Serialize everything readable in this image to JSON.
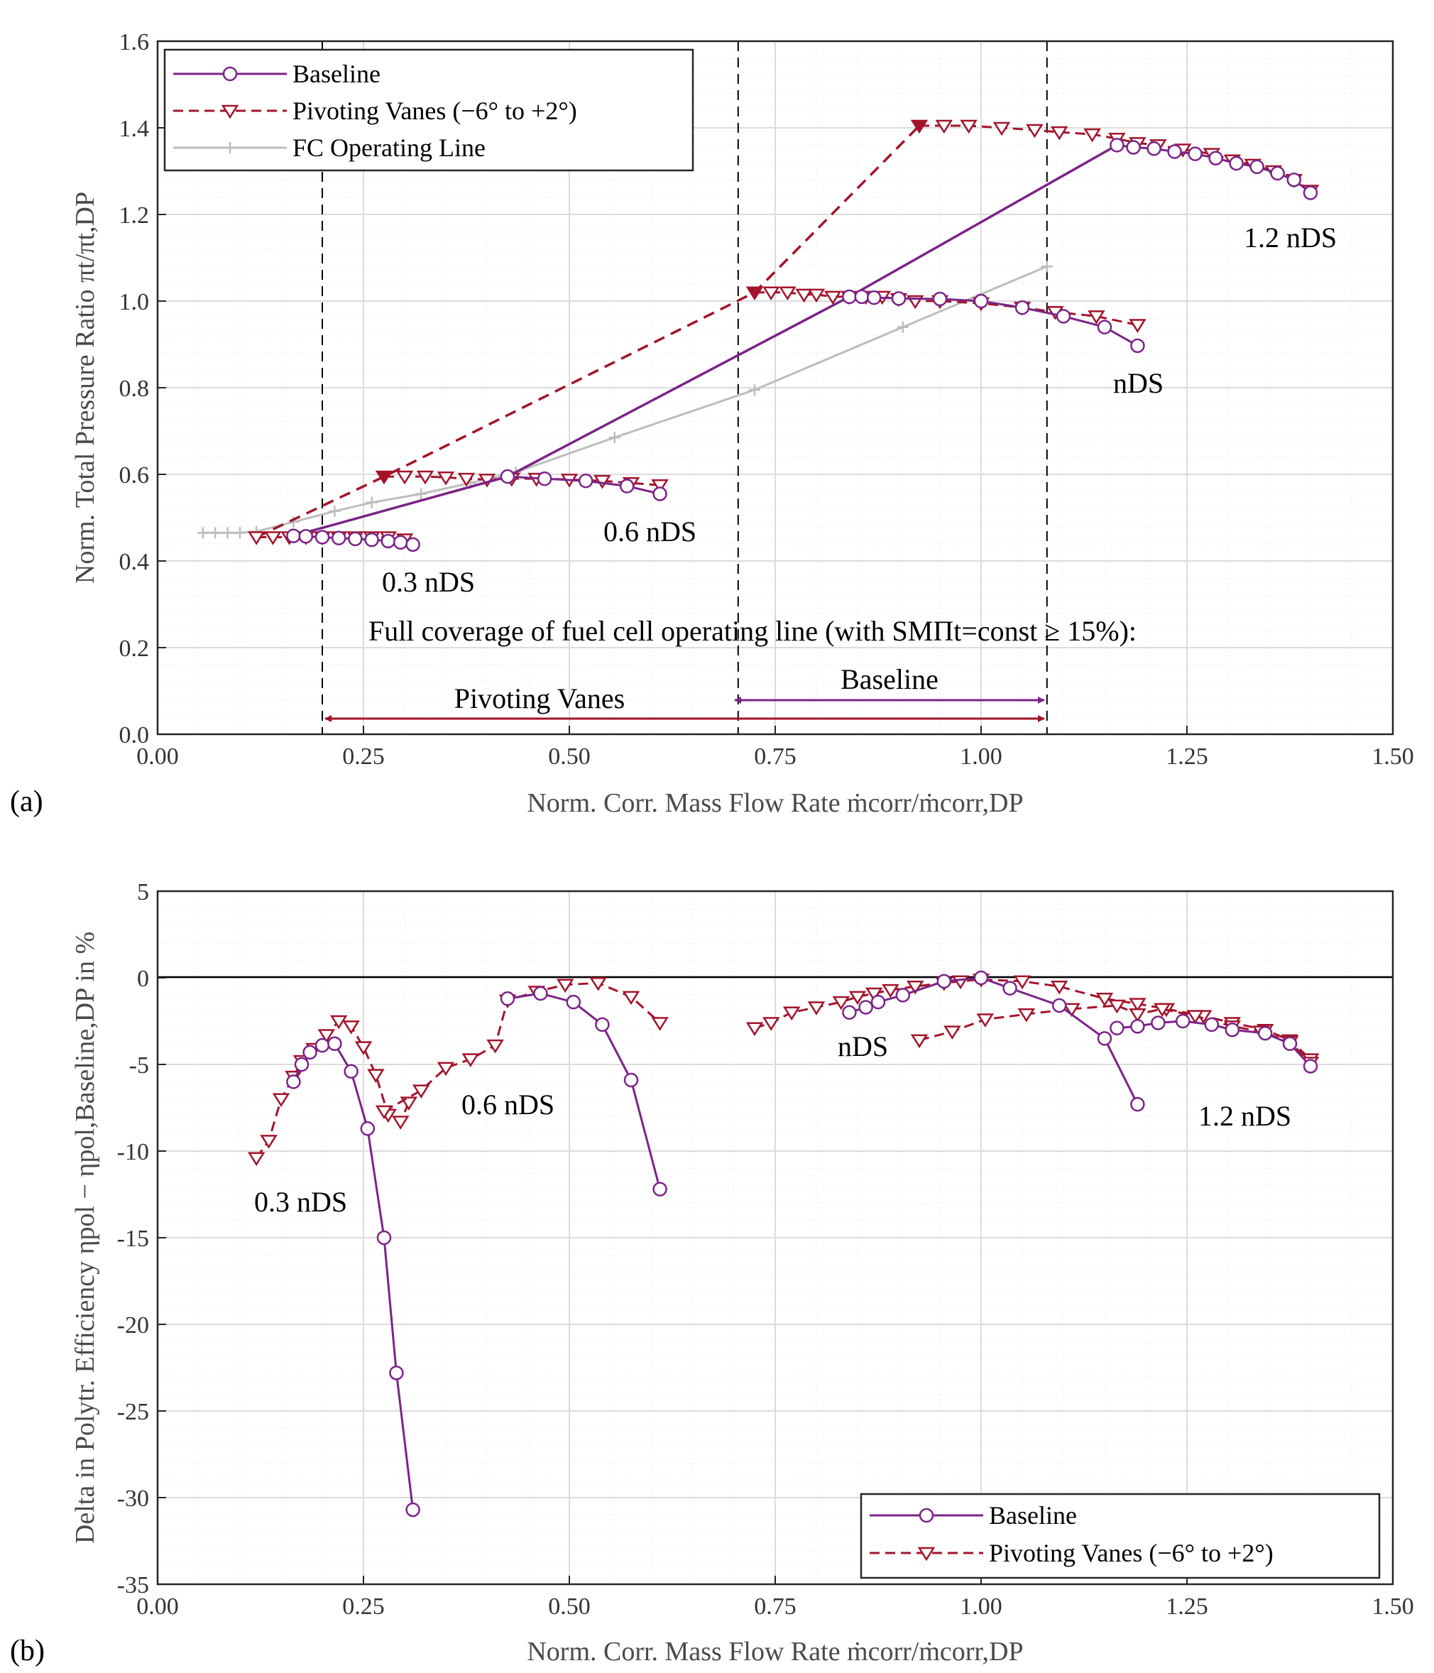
{
  "colors": {
    "baseline": "#7b2487",
    "pivoting": "#a3142b",
    "fc": "#bdbdbd",
    "grid": "#dcdcdc"
  },
  "chart_data": [
    {
      "panel_label": "(a)",
      "type": "line",
      "xlabel": "Norm. Corr. Mass Flow Rate ṁcorr/ṁcorr,DP",
      "ylabel": "Norm. Total Pressure Ratio πt/πt,DP",
      "xlim": [
        0,
        1.5
      ],
      "ylim": [
        0,
        1.6
      ],
      "xticks": [
        "0.00",
        "0.25",
        "0.50",
        "0.75",
        "1.00",
        "1.25",
        "1.50"
      ],
      "yticks": [
        "0.0",
        "0.2",
        "0.4",
        "0.6",
        "0.8",
        "1.0",
        "1.2",
        "1.4",
        "1.6"
      ],
      "legend": {
        "position": "top-left",
        "entries": [
          "Baseline",
          "Pivoting Vanes (−6° to +2°)",
          "FC Operating Line"
        ]
      },
      "series": [
        {
          "name": "Baseline",
          "speedlines": [
            {
              "x": [
                0.165,
                0.18,
                0.2,
                0.22,
                0.24,
                0.26,
                0.28,
                0.295,
                0.31
              ],
              "y": [
                0.458,
                0.457,
                0.455,
                0.453,
                0.451,
                0.449,
                0.446,
                0.443,
                0.438
              ]
            },
            {
              "x": [
                0.425,
                0.47,
                0.52,
                0.57,
                0.61
              ],
              "y": [
                0.595,
                0.59,
                0.585,
                0.573,
                0.555
              ]
            },
            {
              "x": [
                0.84,
                0.855,
                0.87,
                0.9,
                0.95,
                1.0,
                1.05,
                1.1,
                1.15,
                1.19
              ],
              "y": [
                1.01,
                1.01,
                1.008,
                1.006,
                1.005,
                1.0,
                0.985,
                0.965,
                0.94,
                0.897
              ]
            },
            {
              "x": [
                1.165,
                1.185,
                1.21,
                1.235,
                1.26,
                1.285,
                1.31,
                1.335,
                1.36,
                1.38,
                1.4
              ],
              "y": [
                1.36,
                1.355,
                1.352,
                1.345,
                1.34,
                1.33,
                1.318,
                1.31,
                1.295,
                1.28,
                1.25
              ]
            }
          ],
          "surge_line": {
            "x": [
              0.165,
              0.425,
              0.84,
              1.165
            ],
            "y": [
              0.458,
              0.595,
              1.01,
              1.36
            ]
          }
        },
        {
          "name": "Pivoting Vanes (−6° to +2°)",
          "speedlines": [
            {
              "x": [
                0.12,
                0.14,
                0.16,
                0.18,
                0.2,
                0.22,
                0.24,
                0.26,
                0.28,
                0.3
              ],
              "y": [
                0.455,
                0.455,
                0.455,
                0.455,
                0.455,
                0.455,
                0.455,
                0.455,
                0.455,
                0.45
              ]
            },
            {
              "x": [
                0.275,
                0.3,
                0.325,
                0.35,
                0.375,
                0.4,
                0.43,
                0.46,
                0.5,
                0.54,
                0.575,
                0.61
              ],
              "y": [
                0.595,
                0.595,
                0.595,
                0.593,
                0.59,
                0.588,
                0.59,
                0.59,
                0.588,
                0.585,
                0.58,
                0.575
              ]
            },
            {
              "x": [
                0.725,
                0.745,
                0.765,
                0.785,
                0.8,
                0.82,
                0.84,
                0.86,
                0.88,
                0.9,
                0.92,
                0.95,
                1.0,
                1.05,
                1.09,
                1.14,
                1.19
              ],
              "y": [
                1.02,
                1.02,
                1.02,
                1.015,
                1.015,
                1.01,
                1.01,
                1.01,
                1.01,
                1.005,
                1.0,
                1.0,
                0.995,
                0.985,
                0.975,
                0.965,
                0.945
              ]
            },
            {
              "x": [
                0.925,
                0.955,
                0.985,
                1.025,
                1.065,
                1.095,
                1.135,
                1.165,
                1.19,
                1.215,
                1.245,
                1.28,
                1.305,
                1.33,
                1.355,
                1.38,
                1.4
              ],
              "y": [
                1.405,
                1.405,
                1.405,
                1.4,
                1.395,
                1.39,
                1.385,
                1.375,
                1.365,
                1.36,
                1.35,
                1.34,
                1.325,
                1.315,
                1.3,
                1.28,
                1.255
              ]
            }
          ],
          "surge_line": {
            "x": [
              0.12,
              0.275,
              0.725,
              0.925
            ],
            "y": [
              0.455,
              0.595,
              1.02,
              1.405
            ]
          }
        },
        {
          "name": "FC Operating Line",
          "x": [
            0.055,
            0.07,
            0.085,
            0.1,
            0.12,
            0.165,
            0.215,
            0.26,
            0.32,
            0.38,
            0.435,
            0.555,
            0.725,
            0.905,
            1.08
          ],
          "y": [
            0.465,
            0.465,
            0.465,
            0.465,
            0.468,
            0.49,
            0.515,
            0.535,
            0.555,
            0.58,
            0.605,
            0.685,
            0.795,
            0.94,
            1.08
          ]
        }
      ],
      "speed_labels": [
        "0.3 nDS",
        "0.6 nDS",
        "nDS",
        "1.2 nDS"
      ],
      "reference_lines_x": [
        0.2,
        0.705,
        1.08
      ],
      "coverage_text": "Full coverage of fuel cell operating line (with SMΠt=const ≥ 15%):",
      "ranges": [
        {
          "name": "Pivoting Vanes",
          "from": 0.2,
          "to": 1.08
        },
        {
          "name": "Baseline",
          "from": 0.705,
          "to": 1.08
        }
      ]
    },
    {
      "panel_label": "(b)",
      "type": "line",
      "xlabel": "Norm. Corr. Mass Flow Rate ṁcorr/ṁcorr,DP",
      "ylabel": "Delta in Polytr. Efficiency ηpol − ηpol,Baseline,DP in %",
      "xlim": [
        0,
        1.5
      ],
      "ylim": [
        -35,
        5
      ],
      "xticks": [
        "0.00",
        "0.25",
        "0.50",
        "0.75",
        "1.00",
        "1.25",
        "1.50"
      ],
      "yticks": [
        "5",
        "0",
        "-5",
        "-10",
        "-15",
        "-20",
        "-25",
        "-30",
        "-35"
      ],
      "legend": {
        "position": "bottom-right",
        "entries": [
          "Baseline",
          "Pivoting Vanes (−6° to +2°)"
        ]
      },
      "series": [
        {
          "name": "Baseline",
          "speedlines": [
            {
              "x": [
                0.165,
                0.175,
                0.185,
                0.2,
                0.215,
                0.235,
                0.255,
                0.275,
                0.29,
                0.31
              ],
              "y": [
                -6.0,
                -5.0,
                -4.3,
                -3.9,
                -3.8,
                -5.4,
                -8.7,
                -15.0,
                -22.8,
                -30.7
              ]
            },
            {
              "x": [
                0.425,
                0.465,
                0.505,
                0.54,
                0.575,
                0.61
              ],
              "y": [
                -1.2,
                -0.9,
                -1.4,
                -2.7,
                -5.9,
                -12.2
              ]
            },
            {
              "x": [
                0.84,
                0.86,
                0.875,
                0.905,
                0.955,
                1.0,
                1.035,
                1.095,
                1.15,
                1.19
              ],
              "y": [
                -2.0,
                -1.7,
                -1.4,
                -1.0,
                -0.2,
                0.0,
                -0.6,
                -1.6,
                -3.5,
                -7.3
              ]
            },
            {
              "x": [
                1.165,
                1.19,
                1.215,
                1.245,
                1.28,
                1.305,
                1.345,
                1.375,
                1.4
              ],
              "y": [
                -2.9,
                -2.8,
                -2.6,
                -2.5,
                -2.7,
                -3.0,
                -3.2,
                -3.8,
                -5.1
              ]
            }
          ]
        },
        {
          "name": "Pivoting Vanes (−6° to +2°)",
          "speedlines": [
            {
              "x": [
                0.12,
                0.135,
                0.15,
                0.165,
                0.175,
                0.19,
                0.205,
                0.22,
                0.235,
                0.25,
                0.265,
                0.28,
                0.295,
                0.305
              ],
              "y": [
                -10.4,
                -9.4,
                -7.0,
                -5.7,
                -4.8,
                -4.1,
                -3.3,
                -2.5,
                -2.8,
                -4.0,
                -5.6,
                -7.9,
                -8.3,
                -7.2
              ]
            },
            {
              "x": [
                0.275,
                0.32,
                0.35,
                0.38,
                0.41,
                0.425,
                0.46,
                0.495,
                0.535,
                0.575,
                0.61
              ],
              "y": [
                -7.7,
                -6.5,
                -5.2,
                -4.7,
                -3.9,
                -1.3,
                -0.8,
                -0.4,
                -0.3,
                -1.1,
                -2.6
              ]
            },
            {
              "x": [
                0.725,
                0.745,
                0.77,
                0.8,
                0.83,
                0.85,
                0.87,
                0.89,
                0.92,
                0.955,
                0.975,
                1.0,
                1.05,
                1.095,
                1.15,
                1.19,
                1.225,
                1.27,
                1.305,
                1.345,
                1.375,
                1.4
              ],
              "y": [
                -2.9,
                -2.6,
                -2.0,
                -1.7,
                -1.4,
                -1.1,
                -0.9,
                -0.7,
                -0.5,
                -0.3,
                -0.2,
                -0.1,
                -0.2,
                -0.5,
                -1.2,
                -1.5,
                -1.8,
                -2.2,
                -2.6,
                -3.0,
                -3.6,
                -4.7
              ]
            },
            {
              "x": [
                0.925,
                0.965,
                1.005,
                1.055,
                1.11,
                1.165,
                1.19,
                1.22,
                1.26,
                1.305,
                1.34,
                1.375,
                1.4
              ],
              "y": [
                -3.6,
                -3.1,
                -2.4,
                -2.1,
                -1.8,
                -1.6,
                -2.1,
                -1.8,
                -2.2,
                -2.8,
                -3.1,
                -3.7,
                -4.9
              ]
            }
          ]
        }
      ],
      "speed_labels": [
        "0.3 nDS",
        "0.6 nDS",
        "nDS",
        "1.2 nDS"
      ]
    }
  ]
}
